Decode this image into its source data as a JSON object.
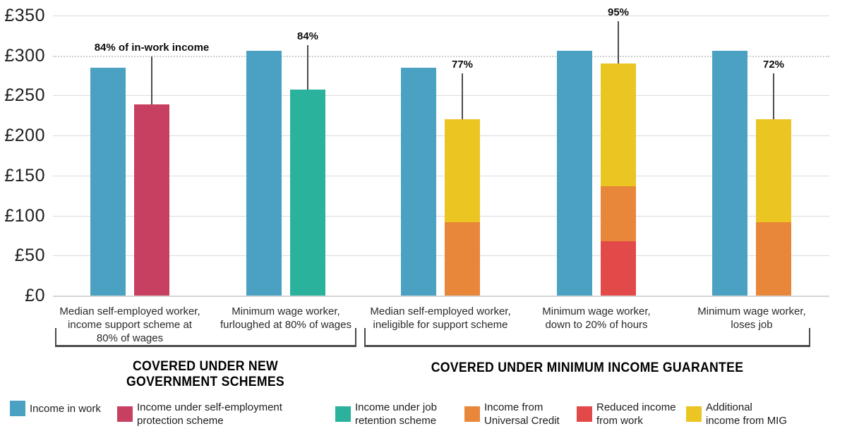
{
  "chart_data": {
    "type": "bar",
    "subtype": "grouped-with-stacked-scenario-bars",
    "title": "",
    "unit": "£ per week",
    "y_axis": {
      "tick_prefix": "£",
      "ticks": [
        350,
        300,
        250,
        200,
        150,
        100,
        50,
        0
      ],
      "ylim": [
        0,
        350
      ],
      "grid": true,
      "dotted_gridline_value": 300
    },
    "colors": {
      "in_work": "#4AA1C1",
      "self_employment_protection": "#C84061",
      "job_retention": "#2AB29D",
      "universal_credit": "#E8863A",
      "reduced_work": "#E24A49",
      "mig": "#EBC522"
    },
    "groups": [
      {
        "label": "Median self-employed worker,\nincome support scheme at\n80% of wages",
        "income_in_work": 285,
        "annotation": "84% of in-work income",
        "scenario_total": 239,
        "segments": [
          {
            "key": "self_employment_protection",
            "value": 239
          }
        ]
      },
      {
        "label": "Minimum wage worker,\nfurloughed at 80% of wages",
        "income_in_work": 306,
        "annotation": "84%",
        "scenario_total": 257,
        "segments": [
          {
            "key": "job_retention",
            "value": 257
          }
        ]
      },
      {
        "label": "Median self-employed worker,\nineligible for support scheme",
        "income_in_work": 285,
        "annotation": "77%",
        "scenario_total": 220,
        "segments": [
          {
            "key": "universal_credit",
            "value": 92
          },
          {
            "key": "mig",
            "value": 128
          }
        ]
      },
      {
        "label": "Minimum wage worker,\ndown to 20% of hours",
        "income_in_work": 306,
        "annotation": "95%",
        "scenario_total": 290,
        "segments": [
          {
            "key": "reduced_work",
            "value": 68
          },
          {
            "key": "universal_credit",
            "value": 69
          },
          {
            "key": "mig",
            "value": 153
          }
        ]
      },
      {
        "label": "Minimum wage worker,\nloses job",
        "income_in_work": 306,
        "annotation": "72%",
        "scenario_total": 220,
        "segments": [
          {
            "key": "universal_credit",
            "value": 92
          },
          {
            "key": "mig",
            "value": 128
          }
        ]
      }
    ]
  },
  "brackets": [
    {
      "label": "COVERED UNDER NEW\nGOVERNMENT SCHEMES"
    },
    {
      "label": "COVERED UNDER MINIMUM INCOME GUARANTEE"
    }
  ],
  "legend": {
    "items": [
      {
        "color_key": "in_work",
        "label": "Income in work"
      },
      {
        "color_key": "self_employment_protection",
        "label": "Income under self-employment\nprotection scheme"
      },
      {
        "color_key": "job_retention",
        "label": "Income under job\nretention scheme"
      },
      {
        "color_key": "universal_credit",
        "label": "Income from\nUniversal Credit"
      },
      {
        "color_key": "reduced_work",
        "label": "Reduced income\nfrom work"
      },
      {
        "color_key": "mig",
        "label": "Additional\nincome from MIG"
      }
    ]
  }
}
